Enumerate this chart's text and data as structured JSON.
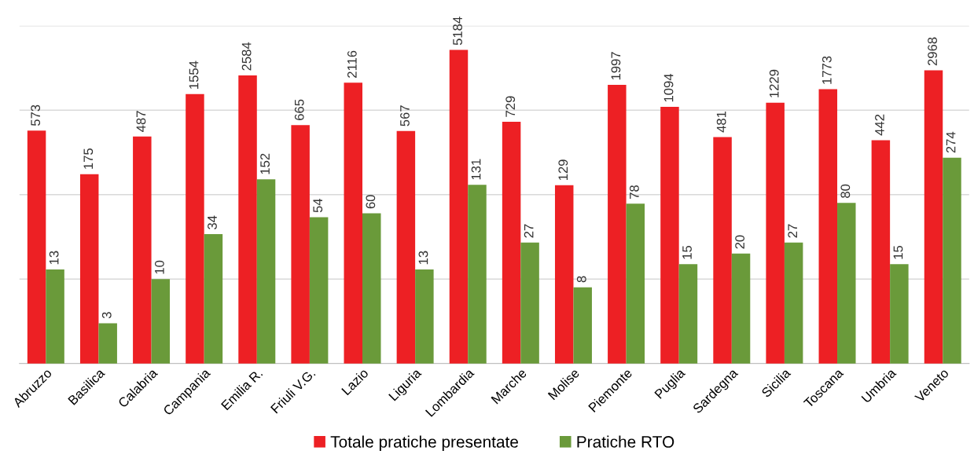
{
  "chart_data": {
    "type": "bar",
    "log": true,
    "categories": [
      "Abruzzo",
      "Basilica",
      "Calabria",
      "Campania",
      "Emilia R.",
      "Friuli V.G.",
      "Lazio",
      "Liguria",
      "Lombardia",
      "Marche",
      "Molise",
      "Piemonte",
      "Puglia",
      "Sardegna",
      "Sicilia",
      "Toscana",
      "Umbria",
      "Veneto"
    ],
    "series": [
      {
        "name": "Totale pratiche presentate",
        "color": "#ed2024",
        "values": [
          573,
          175,
          487,
          1554,
          2584,
          665,
          2116,
          567,
          5184,
          729,
          129,
          1997,
          1094,
          481,
          1229,
          1773,
          442,
          2968
        ]
      },
      {
        "name": "Pratiche RTO",
        "color": "#6a9a3a",
        "values": [
          13,
          3,
          10,
          34,
          152,
          54,
          60,
          13,
          131,
          27,
          8,
          78,
          15,
          20,
          27,
          80,
          15,
          274
        ]
      }
    ],
    "ylim": [
      1,
      10000
    ],
    "yticks": [
      {
        "value": 1,
        "label": null
      },
      {
        "value": 10,
        "label": null
      },
      {
        "value": 100,
        "label": null
      },
      {
        "value": 1000,
        "label": null
      },
      {
        "value": 10000,
        "label": null
      }
    ],
    "tick_labels": "x",
    "grid": "y",
    "data_labels": true,
    "legend": "bottom"
  }
}
